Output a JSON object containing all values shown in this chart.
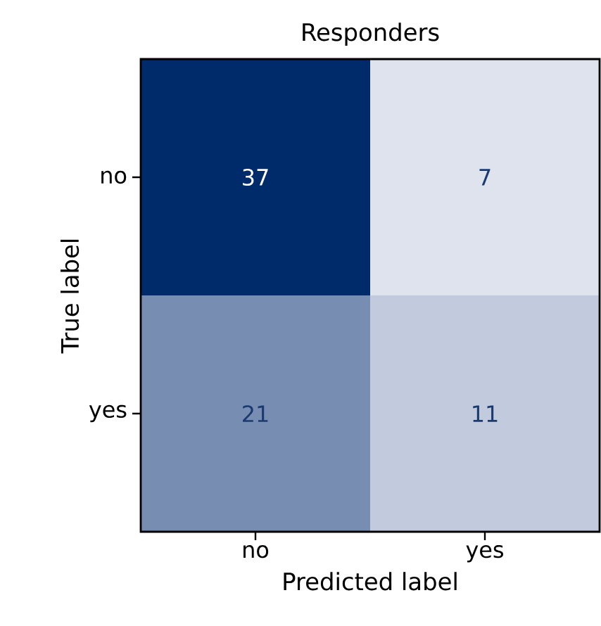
{
  "chart_data": {
    "type": "heatmap",
    "title": "Responders",
    "xlabel": "Predicted label",
    "ylabel": "True label",
    "categories": [
      "no",
      "yes"
    ],
    "y_categories": [
      "no",
      "yes"
    ],
    "cells": [
      [
        37,
        7
      ],
      [
        21,
        11
      ]
    ],
    "cell_labels": [
      [
        "37",
        "7"
      ],
      [
        "21",
        "11"
      ]
    ]
  }
}
